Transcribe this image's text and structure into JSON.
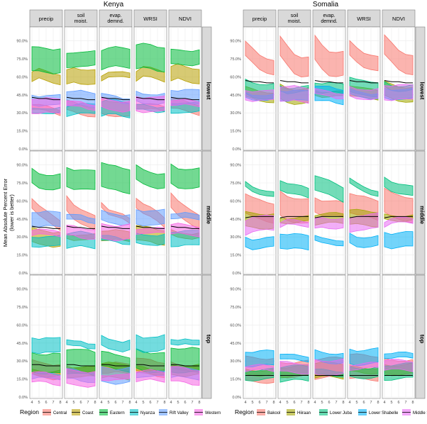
{
  "figure": {
    "y_axis_label_line1": "Mean Absolute Percent Error",
    "y_axis_label_line2": "(lower is better)",
    "legend_title": "Region"
  },
  "chart_data": [
    {
      "type": "line",
      "title": "Kenya",
      "facet_columns": [
        "precip",
        "soil moist.",
        "evap. demnd.",
        "WRSI",
        "NDVI"
      ],
      "facet_rows": [
        "lowest",
        "middle",
        "top"
      ],
      "x": [
        4,
        5,
        6,
        7,
        8
      ],
      "xlabel": "",
      "ylabel": "Mean Absolute Percent Error (lower is better)",
      "ylim": [
        0,
        100
      ],
      "yticks": [
        "0.0%",
        "15.0%",
        "30.0%",
        "45.0%",
        "60.0%",
        "75.0%",
        "90.0%"
      ],
      "legend": [
        "Central",
        "Coast",
        "Eastern",
        "Nyanza",
        "Rift Valley",
        "Western"
      ],
      "legend_position": "bottom",
      "colors": [
        "#F8766D",
        "#B79F00",
        "#00BA38",
        "#00BFC4",
        "#619CFF",
        "#F564E3"
      ],
      "series": [
        {
          "name": "Central",
          "lowest": [
            36,
            35,
            34,
            33,
            32
          ],
          "middle": [
            58,
            52,
            49,
            46,
            42
          ],
          "top": [
            25,
            24,
            24,
            23,
            23
          ]
        },
        {
          "name": "Coast",
          "lowest": [
            60,
            63,
            62,
            61,
            60
          ],
          "middle": [
            32,
            31,
            31,
            30,
            30
          ],
          "top": [
            22,
            22,
            21,
            21,
            21
          ]
        },
        {
          "name": "Eastern",
          "lowest": [
            75,
            76,
            76,
            75,
            75
          ],
          "middle": [
            82,
            79,
            78,
            77,
            77
          ],
          "top": [
            31,
            30,
            29,
            29,
            28
          ]
        },
        {
          "name": "Nyanza",
          "lowest": [
            33,
            34,
            34,
            33,
            33
          ],
          "middle": [
            28,
            28,
            28,
            27,
            27
          ],
          "top": [
            46,
            44,
            44,
            43,
            44
          ]
        },
        {
          "name": "Rift Valley",
          "lowest": [
            43,
            42,
            42,
            41,
            41
          ],
          "middle": [
            47,
            46,
            46,
            45,
            45
          ],
          "top": [
            19,
            19,
            18,
            18,
            18
          ]
        },
        {
          "name": "Western",
          "lowest": [
            38,
            37,
            37,
            36,
            36
          ],
          "middle": [
            35,
            35,
            34,
            34,
            34
          ],
          "top": [
            17,
            17,
            17,
            16,
            16
          ]
        }
      ],
      "national_line": {
        "lowest": [
          43,
          42,
          42,
          41,
          41
        ],
        "middle": [
          39,
          38,
          38,
          37,
          37
        ],
        "top": [
          27,
          27,
          26,
          26,
          26
        ]
      }
    },
    {
      "type": "line",
      "title": "Somalia",
      "facet_columns": [
        "precip",
        "soil moist.",
        "evap. demnd.",
        "WRSI",
        "NDVI"
      ],
      "facet_rows": [
        "lowest",
        "middle",
        "top"
      ],
      "x": [
        4,
        5,
        6,
        7,
        8
      ],
      "xlabel": "",
      "ylabel": "Mean Absolute Percent Error (lower is better)",
      "ylim": [
        0,
        100
      ],
      "yticks": [
        "0.0%",
        "15.0%",
        "30.0%",
        "45.0%",
        "60.0%",
        "75.0%",
        "90.0%"
      ],
      "legend": [
        "Bakool",
        "Hiiraan",
        "Lower Juba",
        "Lower Shabelle",
        "Middle Shabelle"
      ],
      "legend_position": "bottom",
      "colors": [
        "#F8766D",
        "#A3A500",
        "#00BF7D",
        "#00B0F6",
        "#E76BF3"
      ],
      "series": [
        {
          "name": "Bakool",
          "lowest": [
            85,
            78,
            72,
            70,
            70
          ],
          "middle": [
            58,
            55,
            54,
            53,
            52
          ],
          "top": [
            24,
            24,
            24,
            24,
            24
          ]
        },
        {
          "name": "Hiiraan",
          "lowest": [
            48,
            46,
            45,
            45,
            45
          ],
          "middle": [
            45,
            45,
            45,
            45,
            45
          ],
          "top": [
            22,
            22,
            22,
            22,
            22
          ]
        },
        {
          "name": "Lower Juba",
          "lowest": [
            52,
            50,
            50,
            50,
            50
          ],
          "middle": [
            75,
            72,
            70,
            68,
            66
          ],
          "top": [
            20,
            20,
            20,
            20,
            20
          ]
        },
        {
          "name": "Lower Shabelle",
          "lowest": [
            46,
            45,
            45,
            44,
            44
          ],
          "middle": [
            28,
            26,
            26,
            26,
            26
          ],
          "top": [
            34,
            33,
            33,
            33,
            33
          ]
        },
        {
          "name": "Middle Shabelle",
          "lowest": [
            47,
            46,
            46,
            45,
            45
          ],
          "middle": [
            40,
            42,
            42,
            42,
            42
          ],
          "top": [
            25,
            25,
            25,
            25,
            25
          ]
        }
      ],
      "national_line": {
        "lowest": [
          57,
          56,
          56,
          55,
          55
        ],
        "middle": [
          46,
          47,
          47,
          47,
          47
        ],
        "top": [
          18,
          18,
          18,
          18,
          18
        ]
      }
    }
  ],
  "legends": [
    {
      "title": "Region",
      "items": [
        "Central",
        "Coast",
        "Eastern",
        "Nyanza",
        "Rift Valley",
        "Western"
      ],
      "colors": [
        "#F8766D",
        "#B79F00",
        "#00BA38",
        "#00BFC4",
        "#619CFF",
        "#F564E3"
      ]
    },
    {
      "title": "Region",
      "items": [
        "Bakool",
        "Hiiraan",
        "Lower Juba",
        "Lower Shabelle",
        "Middle Shabelle"
      ],
      "colors": [
        "#F8766D",
        "#A3A500",
        "#00BF7D",
        "#00B0F6",
        "#E76BF3"
      ]
    }
  ]
}
